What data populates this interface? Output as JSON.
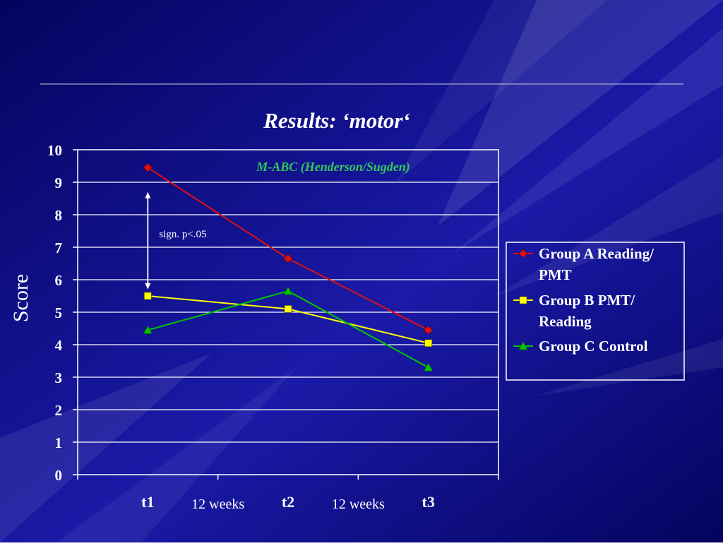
{
  "colors": {
    "background_dark": "#03035e",
    "background_light": "#1a1aa8",
    "text": "#ffffff",
    "subtitle": "#32c85a",
    "grid": "#ffffff"
  },
  "chart_data": {
    "type": "line",
    "title": "Results: ‘motor‘",
    "subtitle": "M-ABC (Henderson/Sugden)",
    "ylabel": "Score",
    "xlabel": "",
    "ylim": [
      0,
      10
    ],
    "yticks": [
      "0",
      "1",
      "2",
      "3",
      "4",
      "5",
      "6",
      "7",
      "8",
      "9",
      "10"
    ],
    "categories": [
      "t1",
      "t2",
      "t3"
    ],
    "interval_labels": [
      "12 weeks",
      "12 weeks"
    ],
    "grid": true,
    "legend_position": "right",
    "series": [
      {
        "name": "Group A Reading/ PMT",
        "legend_lines": [
          "Group A Reading/",
          "PMT"
        ],
        "values": [
          9.45,
          6.65,
          4.45
        ],
        "color": "#e01010",
        "marker": "diamond"
      },
      {
        "name": "Group B PMT/ Reading",
        "legend_lines": [
          "Group B PMT/",
          "Reading"
        ],
        "values": [
          5.5,
          5.1,
          4.05
        ],
        "color": "#ffff00",
        "marker": "square"
      },
      {
        "name": "Group C Control",
        "legend_lines": [
          "Group C Control"
        ],
        "values": [
          4.45,
          5.65,
          3.3
        ],
        "color": "#00c800",
        "marker": "triangle"
      }
    ],
    "annotation": {
      "text": "sign. p<.05",
      "from_value": 8.7,
      "to_value": 5.7,
      "category": "t1"
    }
  }
}
